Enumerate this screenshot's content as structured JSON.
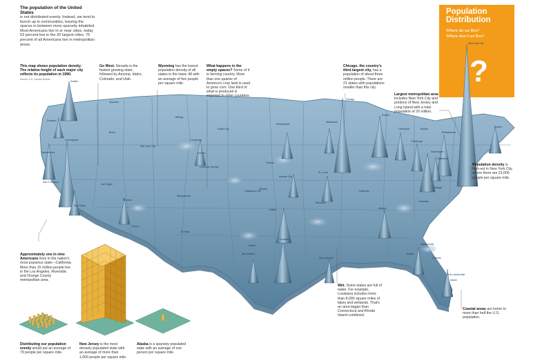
{
  "intro": {
    "title": "The population of the United States",
    "body": "is not distributed evenly. Instead, we tend to bunch up in communities, leaving the spaces in between more sparsely inhabited. Most Americans live in or near cities, today 53 percent live in the 20 largest cities. 75 percent of all Americans live in metropolitan areas."
  },
  "header_box": {
    "title_line1": "Population",
    "title_line2": "Distribution",
    "question1": "Where do we live?",
    "question2": "Where don't we live?",
    "qmark": "?"
  },
  "annotations": {
    "map_note": {
      "bold": "This map shows population density. The relative height of each major city reflects its population in 1990.",
      "body": "Source: U.S. Census Bureau"
    },
    "go_west": {
      "bold": "Go West.",
      "body": "Nevada is the fastest growing state, followed by Arizona, Idaho, Colorado, and Utah."
    },
    "wyoming": {
      "bold": "Wyoming",
      "body": "has the lowest population density of all states in the lower 48 with an average of five people per square mile."
    },
    "empty_spaces": {
      "bold": "What happens in the empty spaces?",
      "body": "Some of it is farming country. More than one quarter of America's crop land is used to grow corn. One third of what is produced is exported to other countries."
    },
    "chicago": {
      "bold": "Chicago, the country's third largest city,",
      "body": "has a population of about three million people. There are 21 states with populations smaller than this city."
    },
    "largest_metro": {
      "bold": "Largest metropolitan area",
      "body": "includes New York City and portions of New Jersey and Long Island with a total population of 20 million."
    },
    "density": {
      "bold": "Population density",
      "body": "is high-est in New York City, where there are 23,000 people per square mile."
    },
    "california": {
      "bold": "Approximately one in nine Americans",
      "body": "lives in the nation's most populous state—California. More than 15 million people live in the Los Angeles, Riverside, and Orange County metropolitan area."
    },
    "wet": {
      "bold": "Wet.",
      "body": "Some states are full of water. For example, Louisiana includes more than 8,000 square miles of lakes and wetlands. That's an area bigger than Connecticut and Rhode Island combined."
    },
    "coastal": {
      "bold": "Coastal areas",
      "body": "are home to more than half the U.S. population."
    }
  },
  "bottom": {
    "even": {
      "bold": "Distributing our population evenly",
      "body": "would put an average of 79 people per square mile."
    },
    "nj": {
      "bold": "New Jersey",
      "body": "is the most densely populated state with an average of more than 1,000 people per square mile."
    },
    "alaska": {
      "bold": "Alaska",
      "body": "is a sparsely populated state with an average of one person per square mile."
    }
  },
  "cities": [
    {
      "id": "seattle",
      "name": "Seattle"
    },
    {
      "id": "portland",
      "name": "Portland"
    },
    {
      "id": "spokane",
      "name": "Spokane"
    },
    {
      "id": "boise",
      "name": "Boise"
    },
    {
      "id": "sacramento",
      "name": "Sacramento"
    },
    {
      "id": "sanfrancisco",
      "name": "San Francisco"
    },
    {
      "id": "losangeles",
      "name": "Los Angeles"
    },
    {
      "id": "sandiego",
      "name": "San Diego"
    },
    {
      "id": "lasvegas",
      "name": "Las Vegas"
    },
    {
      "id": "phoenix",
      "name": "Phoenix"
    },
    {
      "id": "tucson",
      "name": "Tucson"
    },
    {
      "id": "saltlake",
      "name": "Salt Lake City"
    },
    {
      "id": "billings",
      "name": "Billings"
    },
    {
      "id": "denver",
      "name": "Denver"
    },
    {
      "id": "cheyenne",
      "name": "Cheyenne"
    },
    {
      "id": "coloradosprings",
      "name": "Colorado Springs"
    },
    {
      "id": "albuquerque",
      "name": "Albuquerque"
    },
    {
      "id": "elpaso",
      "name": "El Paso"
    },
    {
      "id": "rapidcity",
      "name": "Rapid City"
    },
    {
      "id": "minneapolis",
      "name": "Minneapolis"
    },
    {
      "id": "omaha",
      "name": "Omaha"
    },
    {
      "id": "kansascity",
      "name": "Kansas City"
    },
    {
      "id": "wichita",
      "name": "Wichita"
    },
    {
      "id": "oklahomacity",
      "name": "Oklahoma City"
    },
    {
      "id": "dallas",
      "name": "Dallas"
    },
    {
      "id": "houston",
      "name": "Houston"
    },
    {
      "id": "sanantonio",
      "name": "San Antonio"
    },
    {
      "id": "austin",
      "name": "Austin"
    },
    {
      "id": "chicago",
      "name": "Chicago"
    },
    {
      "id": "milwaukee",
      "name": "Milwaukee"
    },
    {
      "id": "detroit",
      "name": "Detroit"
    },
    {
      "id": "cleveland",
      "name": "Cleveland"
    },
    {
      "id": "buffalo",
      "name": "Buffalo"
    },
    {
      "id": "stlouis",
      "name": "St. Louis"
    },
    {
      "id": "memphis",
      "name": "Memphis"
    },
    {
      "id": "nashville",
      "name": "Nashville"
    },
    {
      "id": "atlanta",
      "name": "Atlanta"
    },
    {
      "id": "neworleans",
      "name": "New Orleans"
    },
    {
      "id": "jacksonville",
      "name": "Jacksonville"
    },
    {
      "id": "tampa",
      "name": "Tampa"
    },
    {
      "id": "orlando",
      "name": "Orlando"
    },
    {
      "id": "miami",
      "name": "Miami"
    },
    {
      "id": "ftlauderdale",
      "name": "Fort Lauderdale"
    },
    {
      "id": "charlotte",
      "name": "Charlotte"
    },
    {
      "id": "raleigh",
      "name": "Raleigh"
    },
    {
      "id": "washington",
      "name": "Washington"
    },
    {
      "id": "baltimore",
      "name": "Baltimore"
    },
    {
      "id": "philadelphia",
      "name": "Philadelphia"
    },
    {
      "id": "newyork",
      "name": "New York City"
    },
    {
      "id": "boston",
      "name": "Boston"
    },
    {
      "id": "pittsburgh",
      "name": "Pittsburgh"
    }
  ],
  "colors": {
    "land": "#7a9fb9",
    "land_dark": "#4f7590",
    "peak": "#9fc0d6",
    "accent": "#f39c1a"
  }
}
